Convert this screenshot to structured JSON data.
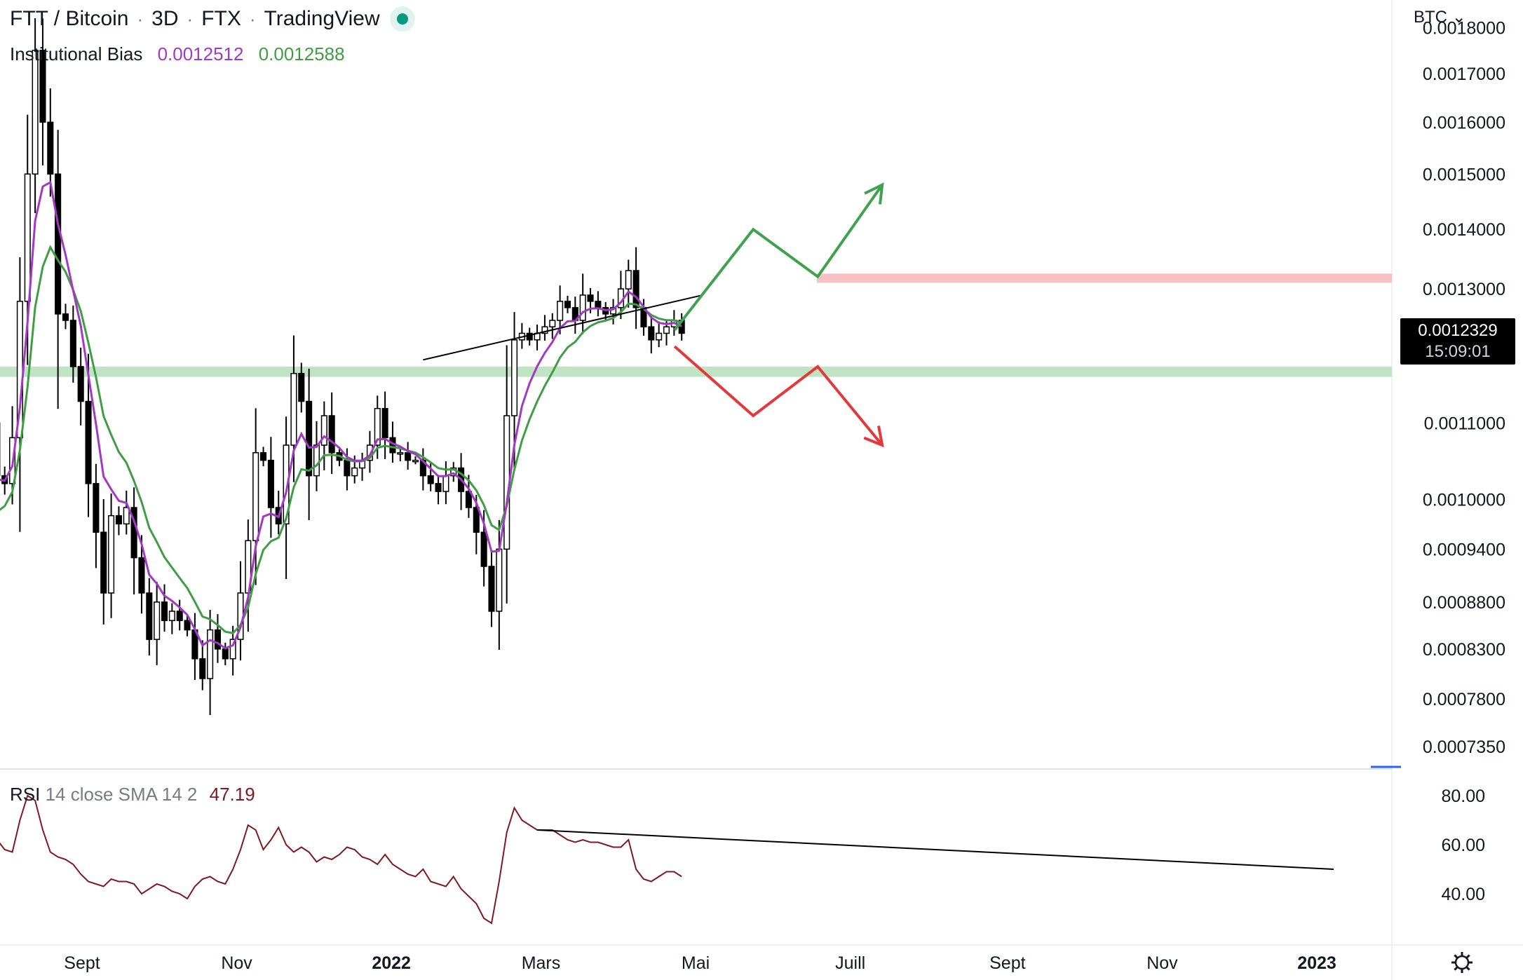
{
  "header": {
    "symbol": "FTT / Bitcoin",
    "interval": "3D",
    "exchange": "FTX",
    "platform": "TradingView",
    "live_status_color": "#089981"
  },
  "indicator": {
    "name": "Institutional Bias",
    "fast_value": "0.0012512",
    "slow_value": "0.0012588",
    "fast_color": "#a338c4",
    "slow_color": "#3f9e44"
  },
  "rsi_legend": {
    "name": "RSI",
    "params": "14 close SMA 14 2",
    "value": "47.19",
    "color": "#801922"
  },
  "currency_button": "BTC ⌄",
  "price_tag": {
    "price": "0.0012329",
    "countdown": "15:09:01"
  },
  "settings_icon": "gear-icon",
  "chart_data": [
    {
      "type": "candlestick",
      "scale": "log",
      "ylim": [
        0.000716,
        0.001815
      ],
      "y_ticks": [
        "0.0018000",
        "0.0017000",
        "0.0016000",
        "0.0015000",
        "0.0014000",
        "0.0013000",
        "0.0011000",
        "0.0010000",
        "0.0009400",
        "0.0008800",
        "0.0008300",
        "0.0007800",
        "0.0007350"
      ],
      "x_ticks": [
        {
          "label": "Sept",
          "bold": false,
          "date": "2021-09-01"
        },
        {
          "label": "Nov",
          "bold": false,
          "date": "2021-11-01"
        },
        {
          "label": "2022",
          "bold": true,
          "date": "2022-01-01"
        },
        {
          "label": "Mars",
          "bold": false,
          "date": "2022-03-01"
        },
        {
          "label": "Mai",
          "bold": false,
          "date": "2022-05-01"
        },
        {
          "label": "Juill",
          "bold": false,
          "date": "2022-07-01"
        },
        {
          "label": "Sept",
          "bold": false,
          "date": "2022-09-01"
        },
        {
          "label": "Nov",
          "bold": false,
          "date": "2022-11-01"
        },
        {
          "label": "2023",
          "bold": true,
          "date": "2023-01-01"
        }
      ],
      "candles_start_date": "2021-07-13",
      "candle_interval_days": 3,
      "close_path": [
        0.00085,
        0.00098,
        0.00107,
        0.00105,
        0.0011,
        0.00103,
        0.00102,
        0.00108,
        0.00128,
        0.0015,
        0.00175,
        0.0016,
        0.0015,
        0.00126,
        0.00125,
        0.00118,
        0.00113,
        0.00102,
        0.00096,
        0.00089,
        0.00098,
        0.00097,
        0.00099,
        0.00093,
        0.00089,
        0.00084,
        0.00088,
        0.00086,
        0.00087,
        0.00086,
        0.00085,
        0.00082,
        0.0008,
        0.00085,
        0.00083,
        0.00082,
        0.00084,
        0.00089,
        0.00095,
        0.00106,
        0.00105,
        0.00099,
        0.00097,
        0.00107,
        0.00117,
        0.00113,
        0.00103,
        0.00107,
        0.00111,
        0.00106,
        0.00105,
        0.00103,
        0.00104,
        0.00105,
        0.00107,
        0.00112,
        0.00108,
        0.00106,
        0.00106,
        0.00105,
        0.00105,
        0.00103,
        0.00102,
        0.00101,
        0.00103,
        0.00104,
        0.00101,
        0.00099,
        0.00096,
        0.00092,
        0.00087,
        0.00094,
        0.00111,
        0.00122,
        0.00123,
        0.00122,
        0.00123,
        0.00124,
        0.00125,
        0.00128,
        0.00127,
        0.00125,
        0.00129,
        0.00128,
        0.00127,
        0.00126,
        0.00127,
        0.0013,
        0.00133,
        0.00127,
        0.00124,
        0.00122,
        0.00123,
        0.00124,
        0.00125,
        0.00123
      ],
      "current_price": 0.0012329,
      "indicator_fast": {
        "name": "Institutional Bias fast",
        "last": 0.0012512
      },
      "indicator_slow": {
        "name": "Institutional Bias slow",
        "last": 0.0012588
      },
      "resistance_zone": [
        0.00131,
        0.001325
      ],
      "support_zone": [
        0.001165,
        0.00118
      ],
      "trendline": [
        [
          0.00119,
          0.00129
        ]
      ],
      "bull_scenario": [
        0.001235,
        0.0014,
        0.00132,
        0.00148
      ],
      "bear_scenario": [
        0.00121,
        0.00111,
        0.00118,
        0.00107
      ]
    },
    {
      "type": "line",
      "name": "RSI",
      "ylim": [
        20,
        90
      ],
      "y_ticks": [
        "80.00",
        "60.00",
        "40.00"
      ],
      "values": [
        56,
        60,
        65,
        63,
        60,
        62,
        58,
        57,
        70,
        80,
        78,
        66,
        57,
        55,
        54,
        52,
        48,
        45,
        44,
        43,
        46,
        45,
        45,
        44,
        40,
        42,
        44,
        43,
        41,
        40,
        38,
        43,
        46,
        47,
        45,
        44,
        50,
        58,
        68,
        66,
        58,
        62,
        67,
        60,
        57,
        59,
        57,
        53,
        55,
        54,
        56,
        59,
        58,
        55,
        54,
        52,
        56,
        52,
        50,
        48,
        47,
        50,
        45,
        44,
        43,
        47,
        42,
        39,
        36,
        30,
        28,
        45,
        65,
        75,
        70,
        68,
        66,
        66,
        66,
        64,
        62,
        61,
        62,
        61,
        61,
        60,
        59,
        59,
        62,
        50,
        46,
        45,
        47,
        49,
        49,
        47
      ],
      "trendline": [
        [
          76,
          66
        ],
        [
          60,
          50
        ]
      ],
      "last": 47.19
    }
  ]
}
